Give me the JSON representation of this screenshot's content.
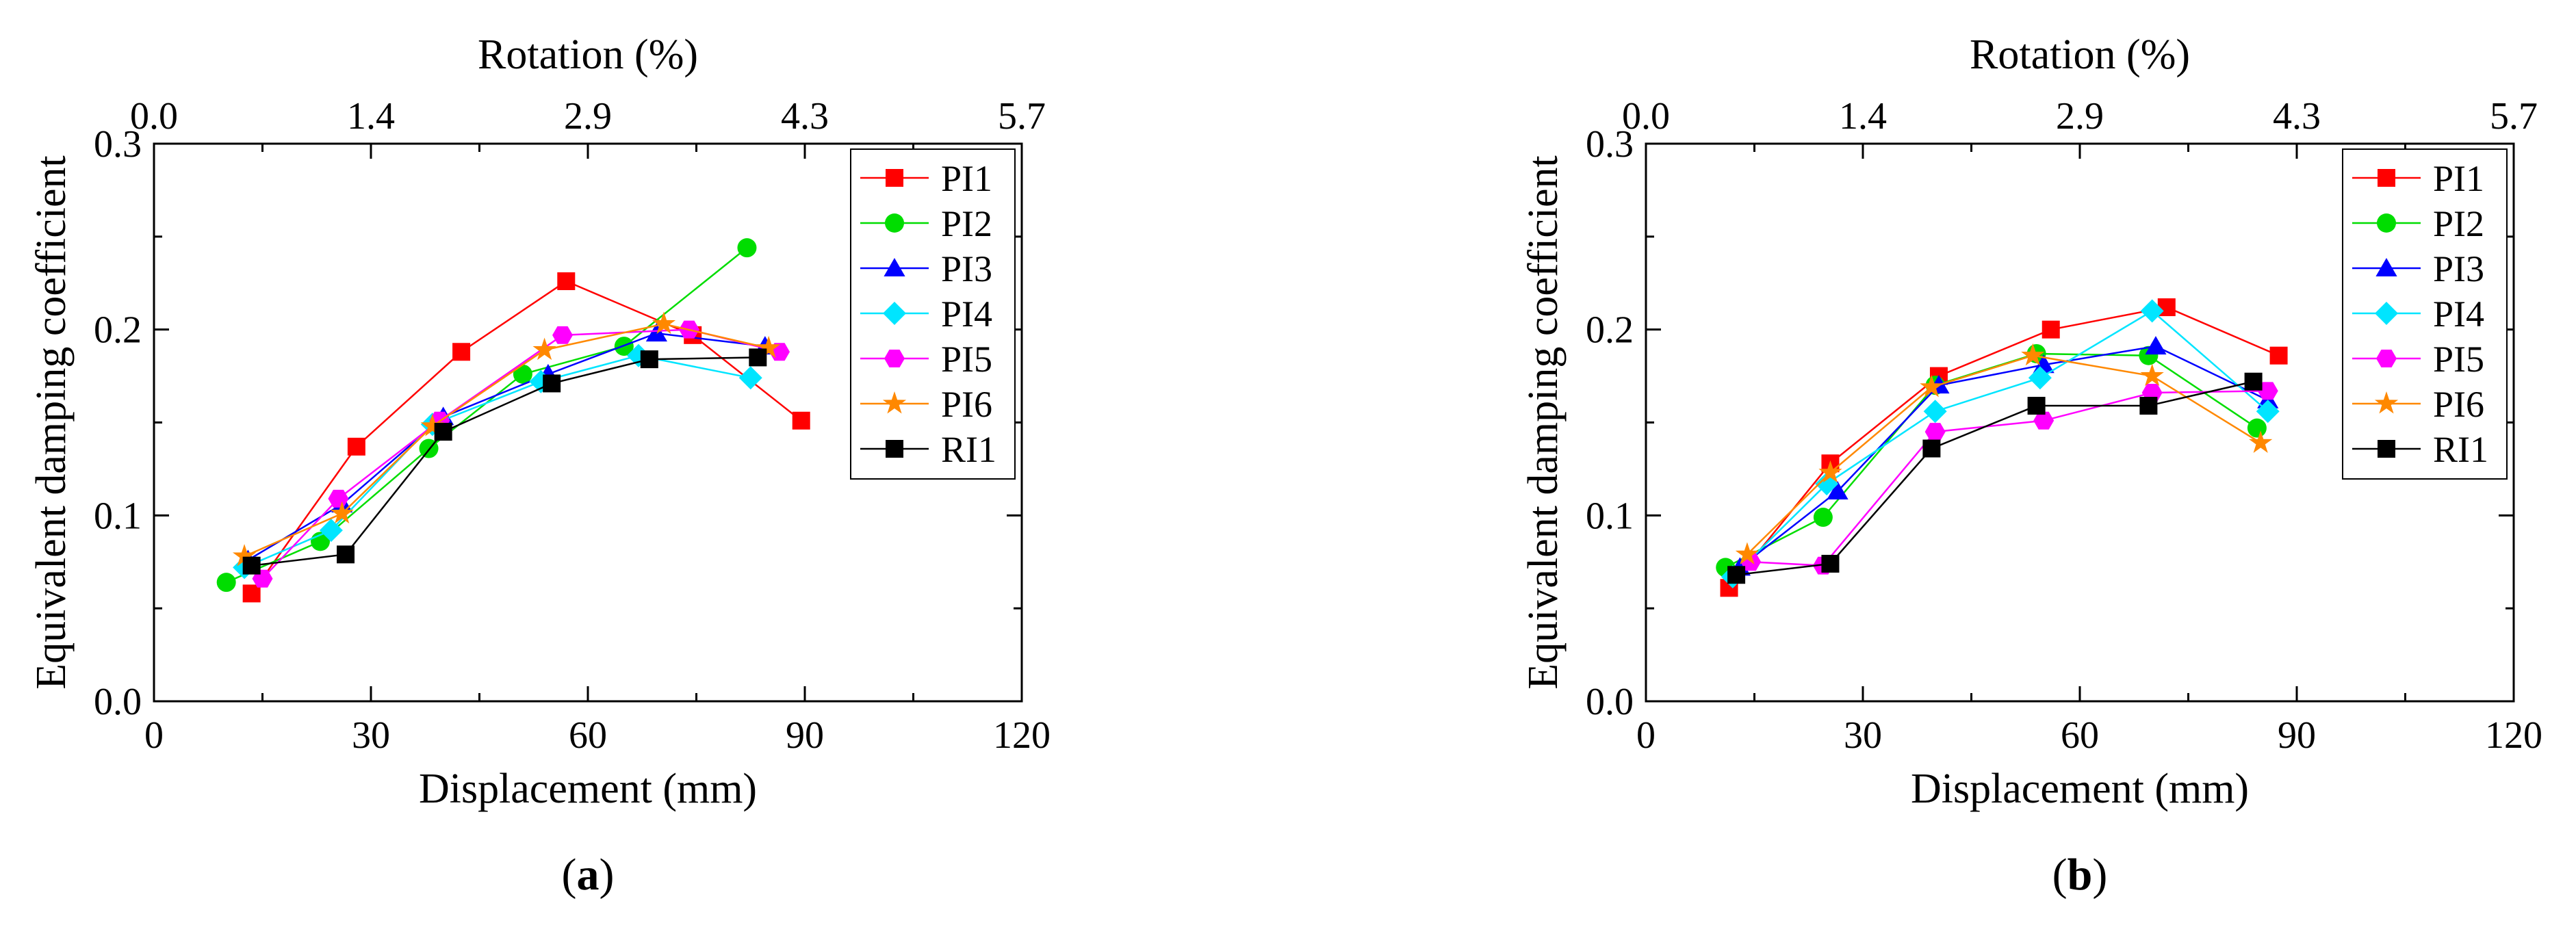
{
  "chart_data": [
    {
      "type": "line",
      "panel_label": "(a)",
      "title": "",
      "xlabel": "Displacement (mm)",
      "x2label": "Rotation (%)",
      "ylabel": "Equivalent damping coefficient",
      "xlim": [
        0,
        120
      ],
      "ylim": [
        0,
        0.3
      ],
      "xticks": [
        0,
        30,
        60,
        90,
        120
      ],
      "x2ticks": [
        "0.0",
        "1.4",
        "2.9",
        "4.3",
        "5.7"
      ],
      "yticks": [
        "0.0",
        "0.1",
        "0.2",
        "0.3"
      ],
      "legend": "top-right",
      "grid": false,
      "series": [
        {
          "name": "PI1",
          "color": "#ff0000",
          "marker": "square",
          "points": [
            [
              13.5,
              0.058
            ],
            [
              28,
              0.137
            ],
            [
              42.5,
              0.188
            ],
            [
              57,
              0.226
            ],
            [
              74.5,
              0.197
            ],
            [
              89.5,
              0.151
            ]
          ]
        },
        {
          "name": "PI2",
          "color": "#00dd00",
          "marker": "circle",
          "points": [
            [
              10,
              0.064
            ],
            [
              23,
              0.086
            ],
            [
              38,
              0.136
            ],
            [
              51,
              0.176
            ],
            [
              65,
              0.191
            ],
            [
              82,
              0.244
            ]
          ]
        },
        {
          "name": "PI3",
          "color": "#0000ff",
          "marker": "triangle",
          "points": [
            [
              13,
              0.076
            ],
            [
              26,
              0.106
            ],
            [
              40,
              0.153
            ],
            [
              54.5,
              0.176
            ],
            [
              69.5,
              0.198
            ],
            [
              84.5,
              0.191
            ]
          ]
        },
        {
          "name": "PI4",
          "color": "#00e5ff",
          "marker": "diamond",
          "points": [
            [
              12.5,
              0.072
            ],
            [
              24.5,
              0.092
            ],
            [
              38.5,
              0.149
            ],
            [
              53.5,
              0.172
            ],
            [
              67,
              0.186
            ],
            [
              82.5,
              0.174
            ]
          ]
        },
        {
          "name": "PI5",
          "color": "#ff00ff",
          "marker": "hexagon",
          "points": [
            [
              15,
              0.066
            ],
            [
              25.5,
              0.109
            ],
            [
              39.5,
              0.151
            ],
            [
              56.5,
              0.197
            ],
            [
              74,
              0.2
            ],
            [
              86.5,
              0.188
            ]
          ]
        },
        {
          "name": "PI6",
          "color": "#ff8800",
          "marker": "star",
          "points": [
            [
              12.5,
              0.078
            ],
            [
              26,
              0.101
            ],
            [
              38.5,
              0.148
            ],
            [
              54,
              0.189
            ],
            [
              70.5,
              0.203
            ],
            [
              85,
              0.19
            ]
          ]
        },
        {
          "name": "RI1",
          "color": "#000000",
          "marker": "square",
          "points": [
            [
              13.5,
              0.073
            ],
            [
              26.5,
              0.079
            ],
            [
              40,
              0.145
            ],
            [
              55,
              0.171
            ],
            [
              68.5,
              0.184
            ],
            [
              83.5,
              0.185
            ]
          ]
        }
      ]
    },
    {
      "type": "line",
      "panel_label": "(b)",
      "title": "",
      "xlabel": "Displacement (mm)",
      "x2label": "Rotation (%)",
      "ylabel": "Equivalent damping coefficient",
      "xlim": [
        0,
        120
      ],
      "ylim": [
        0,
        0.3
      ],
      "xticks": [
        0,
        30,
        60,
        90,
        120
      ],
      "x2ticks": [
        "0.0",
        "1.4",
        "2.9",
        "4.3",
        "5.7"
      ],
      "yticks": [
        "0.0",
        "0.1",
        "0.2",
        "0.3"
      ],
      "legend": "top-right",
      "grid": false,
      "series": [
        {
          "name": "PI1",
          "color": "#ff0000",
          "marker": "square",
          "points": [
            [
              11.5,
              0.061
            ],
            [
              25.5,
              0.128
            ],
            [
              40.5,
              0.175
            ],
            [
              56,
              0.2
            ],
            [
              72,
              0.212
            ],
            [
              87.5,
              0.186
            ]
          ]
        },
        {
          "name": "PI2",
          "color": "#00dd00",
          "marker": "circle",
          "points": [
            [
              11,
              0.072
            ],
            [
              24.5,
              0.099
            ],
            [
              40,
              0.17
            ],
            [
              54,
              0.187
            ],
            [
              69.5,
              0.186
            ],
            [
              84.5,
              0.147
            ]
          ]
        },
        {
          "name": "PI3",
          "color": "#0000ff",
          "marker": "triangle",
          "points": [
            [
              13,
              0.072
            ],
            [
              26.5,
              0.113
            ],
            [
              40.5,
              0.17
            ],
            [
              55,
              0.181
            ],
            [
              70.5,
              0.191
            ],
            [
              86,
              0.162
            ]
          ]
        },
        {
          "name": "PI4",
          "color": "#00e5ff",
          "marker": "diamond",
          "points": [
            [
              12,
              0.067
            ],
            [
              25,
              0.117
            ],
            [
              40,
              0.156
            ],
            [
              54.5,
              0.174
            ],
            [
              70,
              0.21
            ],
            [
              86,
              0.156
            ]
          ]
        },
        {
          "name": "PI5",
          "color": "#ff00ff",
          "marker": "hexagon",
          "points": [
            [
              14.5,
              0.075
            ],
            [
              24.5,
              0.073
            ],
            [
              40,
              0.145
            ],
            [
              55,
              0.151
            ],
            [
              70,
              0.166
            ],
            [
              86,
              0.167
            ]
          ]
        },
        {
          "name": "PI6",
          "color": "#ff8800",
          "marker": "star",
          "points": [
            [
              14,
              0.079
            ],
            [
              25.5,
              0.123
            ],
            [
              39.5,
              0.169
            ],
            [
              53.5,
              0.186
            ],
            [
              70,
              0.175
            ],
            [
              85,
              0.139
            ]
          ]
        },
        {
          "name": "RI1",
          "color": "#000000",
          "marker": "square",
          "points": [
            [
              12.5,
              0.068
            ],
            [
              25.5,
              0.074
            ],
            [
              39.5,
              0.136
            ],
            [
              54,
              0.159
            ],
            [
              69.5,
              0.159
            ],
            [
              84,
              0.172
            ]
          ]
        }
      ]
    }
  ]
}
